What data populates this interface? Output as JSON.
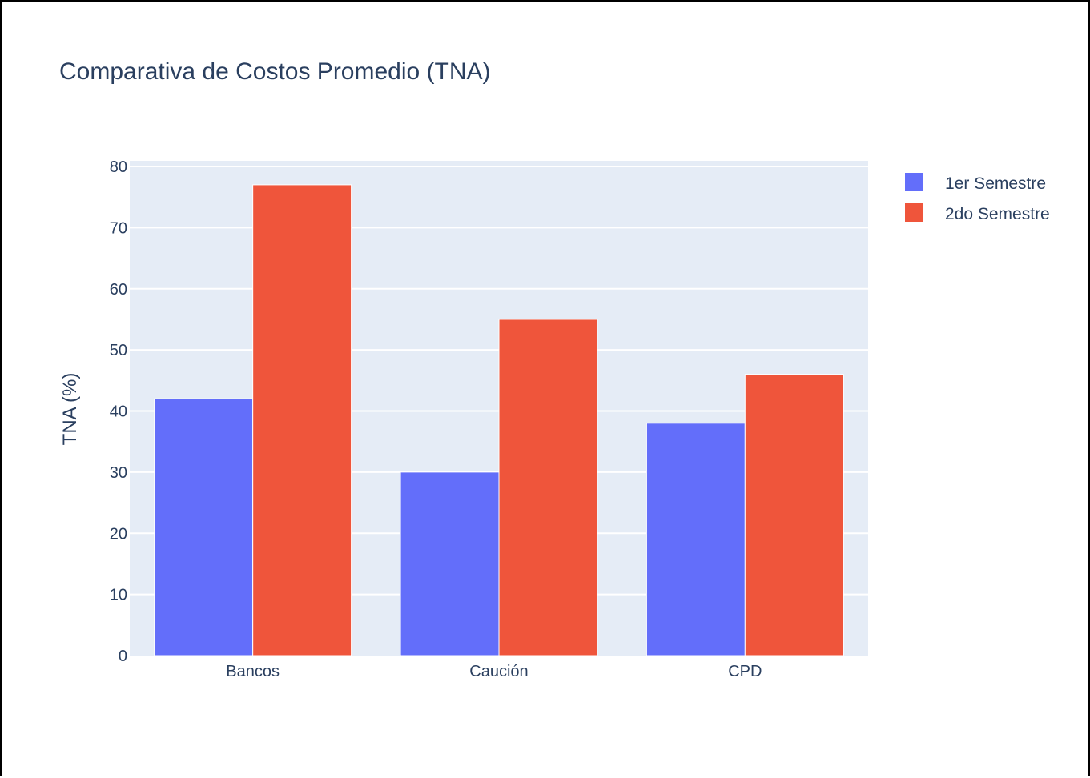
{
  "chart_data": {
    "type": "bar",
    "title": "Comparativa de Costos Promedio (TNA)",
    "xlabel": "",
    "ylabel": "TNA (%)",
    "categories": [
      "Bancos",
      "Caución",
      "CPD"
    ],
    "series": [
      {
        "name": "1er Semestre",
        "values": [
          42,
          30,
          38
        ],
        "color": "#636efa"
      },
      {
        "name": "2do Semestre",
        "values": [
          77,
          55,
          46
        ],
        "color": "#ef553b"
      }
    ],
    "ylim": [
      0,
      80
    ],
    "yticks": [
      0,
      10,
      20,
      30,
      40,
      50,
      60,
      70,
      80
    ],
    "grid": true,
    "legend_position": "top-right",
    "plot_background": "#e5ecf6",
    "barmode": "group"
  }
}
